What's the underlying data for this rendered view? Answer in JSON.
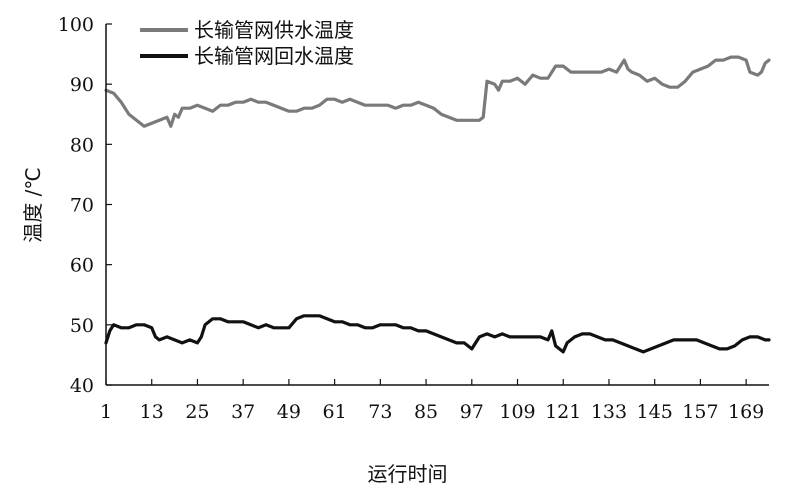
{
  "chart_data": {
    "type": "line",
    "xlabel": "运行时间",
    "ylabel": "温度 /℃",
    "xlim": [
      1,
      175
    ],
    "ylim": [
      40,
      100
    ],
    "x_ticks": [
      "1",
      "13",
      "25",
      "37",
      "49",
      "61",
      "73",
      "85",
      "97",
      "109",
      "121",
      "133",
      "145",
      "157",
      "169"
    ],
    "y_ticks": [
      "40",
      "50",
      "60",
      "70",
      "80",
      "90",
      "100"
    ],
    "grid": false,
    "legend_position": "top-left",
    "series": [
      {
        "name": "长输管网供水温度",
        "color": "#7a7a7a",
        "points": [
          [
            1,
            89
          ],
          [
            3,
            88.5
          ],
          [
            5,
            87
          ],
          [
            7,
            85
          ],
          [
            9,
            84
          ],
          [
            11,
            83
          ],
          [
            13,
            83.5
          ],
          [
            15,
            84
          ],
          [
            17,
            84.5
          ],
          [
            18,
            83
          ],
          [
            19,
            85
          ],
          [
            20,
            84.5
          ],
          [
            21,
            86
          ],
          [
            23,
            86
          ],
          [
            25,
            86.5
          ],
          [
            27,
            86
          ],
          [
            29,
            85.5
          ],
          [
            31,
            86.5
          ],
          [
            33,
            86.5
          ],
          [
            35,
            87
          ],
          [
            37,
            87
          ],
          [
            39,
            87.5
          ],
          [
            41,
            87
          ],
          [
            43,
            87
          ],
          [
            45,
            86.5
          ],
          [
            47,
            86
          ],
          [
            49,
            85.5
          ],
          [
            51,
            85.5
          ],
          [
            53,
            86
          ],
          [
            55,
            86
          ],
          [
            57,
            86.5
          ],
          [
            59,
            87.5
          ],
          [
            61,
            87.5
          ],
          [
            63,
            87
          ],
          [
            65,
            87.5
          ],
          [
            67,
            87
          ],
          [
            69,
            86.5
          ],
          [
            71,
            86.5
          ],
          [
            73,
            86.5
          ],
          [
            75,
            86.5
          ],
          [
            77,
            86
          ],
          [
            79,
            86.5
          ],
          [
            81,
            86.5
          ],
          [
            83,
            87
          ],
          [
            85,
            86.5
          ],
          [
            87,
            86
          ],
          [
            89,
            85
          ],
          [
            91,
            84.5
          ],
          [
            93,
            84
          ],
          [
            95,
            84
          ],
          [
            97,
            84
          ],
          [
            99,
            84
          ],
          [
            100,
            84.5
          ],
          [
            101,
            90.5
          ],
          [
            103,
            90
          ],
          [
            104,
            89
          ],
          [
            105,
            90.5
          ],
          [
            107,
            90.5
          ],
          [
            109,
            91
          ],
          [
            111,
            90
          ],
          [
            113,
            91.5
          ],
          [
            115,
            91
          ],
          [
            117,
            91
          ],
          [
            119,
            93
          ],
          [
            121,
            93
          ],
          [
            123,
            92
          ],
          [
            125,
            92
          ],
          [
            127,
            92
          ],
          [
            129,
            92
          ],
          [
            131,
            92
          ],
          [
            133,
            92.5
          ],
          [
            135,
            92
          ],
          [
            136,
            93
          ],
          [
            137,
            94
          ],
          [
            138,
            92.5
          ],
          [
            139,
            92
          ],
          [
            141,
            91.5
          ],
          [
            143,
            90.5
          ],
          [
            145,
            91
          ],
          [
            147,
            90
          ],
          [
            149,
            89.5
          ],
          [
            151,
            89.5
          ],
          [
            153,
            90.5
          ],
          [
            155,
            92
          ],
          [
            157,
            92.5
          ],
          [
            159,
            93
          ],
          [
            161,
            94
          ],
          [
            163,
            94
          ],
          [
            165,
            94.5
          ],
          [
            167,
            94.5
          ],
          [
            169,
            94
          ],
          [
            170,
            92
          ],
          [
            172,
            91.5
          ],
          [
            173,
            92
          ],
          [
            174,
            93.5
          ],
          [
            175,
            94
          ]
        ]
      },
      {
        "name": "长输管网回水温度",
        "color": "#111111",
        "points": [
          [
            1,
            47
          ],
          [
            2,
            49
          ],
          [
            3,
            50
          ],
          [
            5,
            49.5
          ],
          [
            7,
            49.5
          ],
          [
            9,
            50
          ],
          [
            11,
            50
          ],
          [
            13,
            49.5
          ],
          [
            14,
            48
          ],
          [
            15,
            47.5
          ],
          [
            17,
            48
          ],
          [
            19,
            47.5
          ],
          [
            21,
            47
          ],
          [
            23,
            47.5
          ],
          [
            25,
            47
          ],
          [
            26,
            48
          ],
          [
            27,
            50
          ],
          [
            29,
            51
          ],
          [
            31,
            51
          ],
          [
            33,
            50.5
          ],
          [
            35,
            50.5
          ],
          [
            37,
            50.5
          ],
          [
            39,
            50
          ],
          [
            41,
            49.5
          ],
          [
            43,
            50
          ],
          [
            45,
            49.5
          ],
          [
            47,
            49.5
          ],
          [
            49,
            49.5
          ],
          [
            51,
            51
          ],
          [
            53,
            51.5
          ],
          [
            55,
            51.5
          ],
          [
            57,
            51.5
          ],
          [
            59,
            51
          ],
          [
            61,
            50.5
          ],
          [
            63,
            50.5
          ],
          [
            65,
            50
          ],
          [
            67,
            50
          ],
          [
            69,
            49.5
          ],
          [
            71,
            49.5
          ],
          [
            73,
            50
          ],
          [
            75,
            50
          ],
          [
            77,
            50
          ],
          [
            79,
            49.5
          ],
          [
            81,
            49.5
          ],
          [
            83,
            49
          ],
          [
            85,
            49
          ],
          [
            87,
            48.5
          ],
          [
            89,
            48
          ],
          [
            91,
            47.5
          ],
          [
            93,
            47
          ],
          [
            95,
            47
          ],
          [
            97,
            46
          ],
          [
            99,
            48
          ],
          [
            101,
            48.5
          ],
          [
            103,
            48
          ],
          [
            105,
            48.5
          ],
          [
            107,
            48
          ],
          [
            109,
            48
          ],
          [
            111,
            48
          ],
          [
            113,
            48
          ],
          [
            115,
            48
          ],
          [
            117,
            47.5
          ],
          [
            118,
            49
          ],
          [
            119,
            46.5
          ],
          [
            121,
            45.5
          ],
          [
            122,
            47
          ],
          [
            124,
            48
          ],
          [
            126,
            48.5
          ],
          [
            128,
            48.5
          ],
          [
            130,
            48
          ],
          [
            132,
            47.5
          ],
          [
            134,
            47.5
          ],
          [
            136,
            47
          ],
          [
            138,
            46.5
          ],
          [
            140,
            46
          ],
          [
            142,
            45.5
          ],
          [
            144,
            46
          ],
          [
            146,
            46.5
          ],
          [
            148,
            47
          ],
          [
            150,
            47.5
          ],
          [
            152,
            47.5
          ],
          [
            154,
            47.5
          ],
          [
            156,
            47.5
          ],
          [
            158,
            47
          ],
          [
            160,
            46.5
          ],
          [
            162,
            46
          ],
          [
            164,
            46
          ],
          [
            166,
            46.5
          ],
          [
            168,
            47.5
          ],
          [
            170,
            48
          ],
          [
            172,
            48
          ],
          [
            174,
            47.5
          ],
          [
            175,
            47.5
          ]
        ]
      }
    ]
  }
}
